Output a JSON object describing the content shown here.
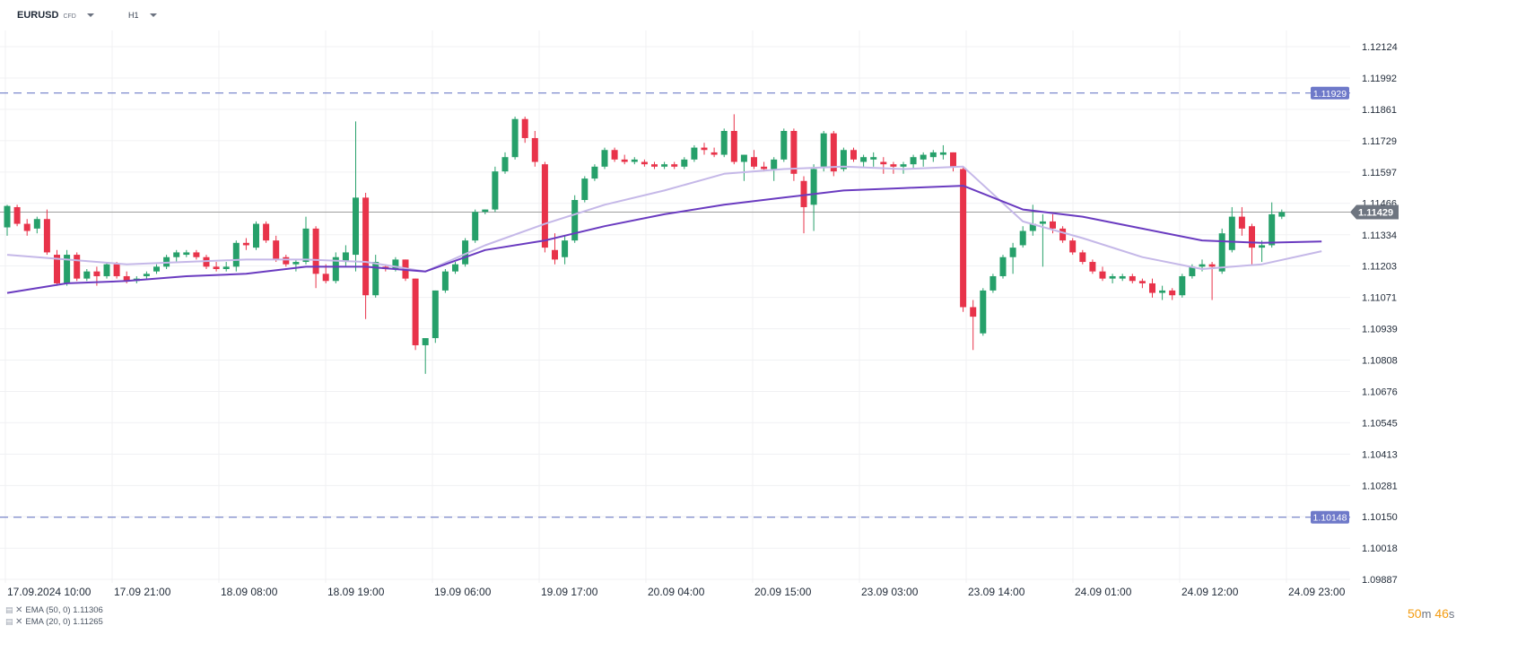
{
  "toolbar": {
    "symbol": "EURUSD",
    "symbol_type": "CFD",
    "timeframe": "H1"
  },
  "legend": [
    {
      "text": "EMA (50, 0) 1.11306"
    },
    {
      "text": "EMA (20, 0) 1.11265"
    }
  ],
  "countdown": {
    "minutes": "50",
    "min_unit": "m",
    "seconds": "46",
    "sec_unit": "s"
  },
  "colors": {
    "up": "#26a06a",
    "down": "#e8334a",
    "ema50": "#6a3bc0",
    "ema20": "#c5b8e8",
    "hline": "#5c6bc0",
    "hline_label": "#6e79c9",
    "price_line": "#9e9e9e",
    "price_label": "#6e7580"
  },
  "chart_data": {
    "type": "candlestick",
    "symbol": "EURUSD",
    "interval": "H1",
    "price_range": [
      1.09887,
      1.1219
    ],
    "price_ticks": [
      "1.12124",
      "1.11992",
      "1.11861",
      "1.11729",
      "1.11597",
      "1.11466",
      "1.11334",
      "1.11203",
      "1.11071",
      "1.10939",
      "1.10808",
      "1.10676",
      "1.10545",
      "1.10413",
      "1.10281",
      "1.10150",
      "1.10018",
      "1.09887"
    ],
    "time_labels": [
      "17.09.2024  10:00",
      "17.09  21:00",
      "18.09  08:00",
      "18.09  19:00",
      "19.09  06:00",
      "19.09  17:00",
      "20.09  04:00",
      "20.09  15:00",
      "23.09  03:00",
      "23.09  14:00",
      "24.09  01:00",
      "24.09  12:00",
      "24.09  23:00"
    ],
    "last_price": "1.11429",
    "horizontal_lines": [
      "1.11929",
      "1.10148"
    ],
    "candles": [
      [
        1.11365,
        1.1146,
        1.1133,
        1.11455
      ],
      [
        1.1145,
        1.1146,
        1.1137,
        1.1138
      ],
      [
        1.1138,
        1.114,
        1.1133,
        1.1135
      ],
      [
        1.1136,
        1.1141,
        1.1134,
        1.114
      ],
      [
        1.114,
        1.1144,
        1.1125,
        1.1126
      ],
      [
        1.1125,
        1.1127,
        1.1112,
        1.1113
      ],
      [
        1.1113,
        1.1127,
        1.1112,
        1.1125
      ],
      [
        1.1125,
        1.1126,
        1.1114,
        1.1115
      ],
      [
        1.1115,
        1.1119,
        1.1114,
        1.1118
      ],
      [
        1.1118,
        1.112,
        1.1112,
        1.1116
      ],
      [
        1.1116,
        1.1122,
        1.1115,
        1.1121
      ],
      [
        1.1121,
        1.1122,
        1.1115,
        1.1116
      ],
      [
        1.1116,
        1.1118,
        1.1113,
        1.1114
      ],
      [
        1.1114,
        1.1116,
        1.1113,
        1.1115
      ],
      [
        1.1116,
        1.1118,
        1.1115,
        1.1117
      ],
      [
        1.1118,
        1.1121,
        1.1117,
        1.112
      ],
      [
        1.112,
        1.1125,
        1.1119,
        1.1124
      ],
      [
        1.1124,
        1.1127,
        1.1122,
        1.1126
      ],
      [
        1.1125,
        1.1127,
        1.1124,
        1.1126
      ],
      [
        1.1126,
        1.1127,
        1.1123,
        1.1124
      ],
      [
        1.1124,
        1.1125,
        1.1119,
        1.112
      ],
      [
        1.112,
        1.1122,
        1.1118,
        1.1119
      ],
      [
        1.1119,
        1.1122,
        1.1118,
        1.112
      ],
      [
        1.112,
        1.1131,
        1.1118,
        1.113
      ],
      [
        1.113,
        1.1132,
        1.1127,
        1.1129
      ],
      [
        1.1128,
        1.1139,
        1.1127,
        1.1138
      ],
      [
        1.1138,
        1.1139,
        1.113,
        1.1131
      ],
      [
        1.1131,
        1.1133,
        1.1122,
        1.1123
      ],
      [
        1.1124,
        1.1125,
        1.112,
        1.1121
      ],
      [
        1.1121,
        1.1123,
        1.1118,
        1.1122
      ],
      [
        1.1122,
        1.1141,
        1.1121,
        1.1136
      ],
      [
        1.1136,
        1.1137,
        1.1111,
        1.1117
      ],
      [
        1.1117,
        1.1121,
        1.1113,
        1.1114
      ],
      [
        1.1114,
        1.1126,
        1.1113,
        1.1124
      ],
      [
        1.1122,
        1.1129,
        1.112,
        1.1126
      ],
      [
        1.1125,
        1.1181,
        1.1118,
        1.1149
      ],
      [
        1.1149,
        1.1151,
        1.1098,
        1.1108
      ],
      [
        1.1108,
        1.1125,
        1.1107,
        1.1122
      ],
      [
        1.112,
        1.1121,
        1.1118,
        1.1119
      ],
      [
        1.1119,
        1.1124,
        1.1118,
        1.1123
      ],
      [
        1.1123,
        1.1123,
        1.1114,
        1.1115
      ],
      [
        1.1115,
        1.1115,
        1.1085,
        1.1087
      ],
      [
        1.1087,
        1.109,
        1.1075,
        1.109
      ],
      [
        1.109,
        1.111,
        1.1088,
        1.111
      ],
      [
        1.111,
        1.1119,
        1.1109,
        1.1118
      ],
      [
        1.1118,
        1.1122,
        1.1117,
        1.1121
      ],
      [
        1.1121,
        1.1132,
        1.112,
        1.1131
      ],
      [
        1.1131,
        1.1144,
        1.113,
        1.1143
      ],
      [
        1.1143,
        1.1144,
        1.1142,
        1.1144
      ],
      [
        1.1144,
        1.1162,
        1.1143,
        1.116
      ],
      [
        1.116,
        1.1168,
        1.1159,
        1.1166
      ],
      [
        1.1166,
        1.1183,
        1.1165,
        1.1182
      ],
      [
        1.1182,
        1.1183,
        1.1172,
        1.1174
      ],
      [
        1.1174,
        1.1177,
        1.1162,
        1.1164
      ],
      [
        1.1163,
        1.1164,
        1.1126,
        1.1128
      ],
      [
        1.1127,
        1.1134,
        1.1121,
        1.1123
      ],
      [
        1.1124,
        1.1133,
        1.1121,
        1.1131
      ],
      [
        1.1131,
        1.115,
        1.113,
        1.1148
      ],
      [
        1.1148,
        1.1158,
        1.1147,
        1.1157
      ],
      [
        1.1157,
        1.1163,
        1.1156,
        1.1162
      ],
      [
        1.1162,
        1.117,
        1.1161,
        1.1169
      ],
      [
        1.1169,
        1.117,
        1.1164,
        1.1165
      ],
      [
        1.1165,
        1.1167,
        1.1163,
        1.1164
      ],
      [
        1.1164,
        1.1166,
        1.1163,
        1.1165
      ],
      [
        1.1164,
        1.1165,
        1.1162,
        1.1163
      ],
      [
        1.1163,
        1.1164,
        1.1161,
        1.1162
      ],
      [
        1.1162,
        1.1164,
        1.1161,
        1.1163
      ],
      [
        1.1163,
        1.1164,
        1.1161,
        1.1162
      ],
      [
        1.1162,
        1.1166,
        1.1161,
        1.1165
      ],
      [
        1.1165,
        1.1171,
        1.1164,
        1.117
      ],
      [
        1.117,
        1.1172,
        1.1167,
        1.1169
      ],
      [
        1.1168,
        1.117,
        1.1166,
        1.1167
      ],
      [
        1.1167,
        1.1178,
        1.1166,
        1.1177
      ],
      [
        1.1177,
        1.1184,
        1.1163,
        1.1164
      ],
      [
        1.1164,
        1.1167,
        1.1156,
        1.1167
      ],
      [
        1.1166,
        1.1169,
        1.1161,
        1.1162
      ],
      [
        1.1162,
        1.1164,
        1.116,
        1.1161
      ],
      [
        1.1161,
        1.1166,
        1.1156,
        1.1165
      ],
      [
        1.1165,
        1.1178,
        1.1164,
        1.1177
      ],
      [
        1.1177,
        1.1178,
        1.1156,
        1.1159
      ],
      [
        1.1156,
        1.1158,
        1.1134,
        1.1145
      ],
      [
        1.1146,
        1.1163,
        1.1135,
        1.1161
      ],
      [
        1.1162,
        1.1177,
        1.116,
        1.1176
      ],
      [
        1.1176,
        1.1177,
        1.1158,
        1.116
      ],
      [
        1.1161,
        1.117,
        1.116,
        1.1169
      ],
      [
        1.1169,
        1.117,
        1.1164,
        1.1165
      ],
      [
        1.1164,
        1.1167,
        1.1162,
        1.1166
      ],
      [
        1.1165,
        1.1168,
        1.1162,
        1.1166
      ],
      [
        1.1164,
        1.1166,
        1.1159,
        1.1163
      ],
      [
        1.1163,
        1.1164,
        1.1159,
        1.1162
      ],
      [
        1.1162,
        1.1164,
        1.1159,
        1.1163
      ],
      [
        1.1163,
        1.1167,
        1.1161,
        1.1166
      ],
      [
        1.1165,
        1.1168,
        1.1162,
        1.1167
      ],
      [
        1.1166,
        1.1169,
        1.1164,
        1.1168
      ],
      [
        1.1167,
        1.1171,
        1.1165,
        1.1168
      ],
      [
        1.1168,
        1.1168,
        1.116,
        1.1162
      ],
      [
        1.1161,
        1.1162,
        1.1101,
        1.1103
      ],
      [
        1.1103,
        1.1106,
        1.1085,
        1.1099
      ],
      [
        1.1092,
        1.1111,
        1.1091,
        1.111
      ],
      [
        1.111,
        1.1117,
        1.1109,
        1.1116
      ],
      [
        1.1116,
        1.1125,
        1.1115,
        1.1124
      ],
      [
        1.1124,
        1.113,
        1.1117,
        1.1128
      ],
      [
        1.1129,
        1.1137,
        1.1128,
        1.1135
      ],
      [
        1.1135,
        1.1146,
        1.1133,
        1.1138
      ],
      [
        1.1138,
        1.1142,
        1.112,
        1.1139
      ],
      [
        1.1139,
        1.1142,
        1.1134,
        1.1136
      ],
      [
        1.1136,
        1.1137,
        1.113,
        1.1131
      ],
      [
        1.1131,
        1.1132,
        1.1125,
        1.1126
      ],
      [
        1.1126,
        1.1127,
        1.1121,
        1.1122
      ],
      [
        1.1122,
        1.1123,
        1.1117,
        1.1118
      ],
      [
        1.1118,
        1.112,
        1.1114,
        1.1115
      ],
      [
        1.1115,
        1.1117,
        1.1113,
        1.1116
      ],
      [
        1.1115,
        1.1117,
        1.1114,
        1.1116
      ],
      [
        1.1116,
        1.1117,
        1.1113,
        1.1114
      ],
      [
        1.1114,
        1.1115,
        1.1111,
        1.1113
      ],
      [
        1.1113,
        1.1115,
        1.1107,
        1.1109
      ],
      [
        1.1109,
        1.1112,
        1.1106,
        1.111
      ],
      [
        1.111,
        1.1111,
        1.1106,
        1.1108
      ],
      [
        1.1108,
        1.1117,
        1.1107,
        1.1116
      ],
      [
        1.1116,
        1.1121,
        1.1115,
        1.112
      ],
      [
        1.112,
        1.1123,
        1.1118,
        1.1121
      ],
      [
        1.1121,
        1.1122,
        1.1106,
        1.112
      ],
      [
        1.1118,
        1.1136,
        1.1117,
        1.1134
      ],
      [
        1.1127,
        1.1145,
        1.1126,
        1.1141
      ],
      [
        1.1141,
        1.1145,
        1.1133,
        1.1136
      ],
      [
        1.1137,
        1.1138,
        1.1121,
        1.1128
      ],
      [
        1.1128,
        1.1131,
        1.1122,
        1.1129
      ],
      [
        1.1129,
        1.1147,
        1.1128,
        1.1142
      ],
      [
        1.1141,
        1.1144,
        1.114,
        1.11429
      ]
    ],
    "ema50": [
      [
        0,
        1.1109
      ],
      [
        6,
        1.1113
      ],
      [
        12,
        1.1114
      ],
      [
        18,
        1.1116
      ],
      [
        24,
        1.1117
      ],
      [
        30,
        1.112
      ],
      [
        36,
        1.112
      ],
      [
        42,
        1.1118
      ],
      [
        48,
        1.1127
      ],
      [
        54,
        1.1131
      ],
      [
        60,
        1.1137
      ],
      [
        66,
        1.1142
      ],
      [
        72,
        1.1146
      ],
      [
        78,
        1.1149
      ],
      [
        84,
        1.1152
      ],
      [
        90,
        1.1153
      ],
      [
        96,
        1.1154
      ],
      [
        102,
        1.1144
      ],
      [
        108,
        1.1141
      ],
      [
        114,
        1.1136
      ],
      [
        120,
        1.1131
      ],
      [
        126,
        1.113
      ],
      [
        132,
        1.11306
      ]
    ],
    "ema20": [
      [
        0,
        1.1125
      ],
      [
        6,
        1.1123
      ],
      [
        12,
        1.1121
      ],
      [
        18,
        1.1122
      ],
      [
        24,
        1.1123
      ],
      [
        30,
        1.1123
      ],
      [
        36,
        1.1122
      ],
      [
        42,
        1.1118
      ],
      [
        48,
        1.1129
      ],
      [
        54,
        1.1138
      ],
      [
        60,
        1.1146
      ],
      [
        66,
        1.1152
      ],
      [
        72,
        1.1159
      ],
      [
        78,
        1.1161
      ],
      [
        84,
        1.1162
      ],
      [
        90,
        1.1161
      ],
      [
        96,
        1.1162
      ],
      [
        102,
        1.1139
      ],
      [
        108,
        1.1132
      ],
      [
        114,
        1.1124
      ],
      [
        120,
        1.1119
      ],
      [
        126,
        1.1121
      ],
      [
        132,
        1.11265
      ]
    ]
  }
}
